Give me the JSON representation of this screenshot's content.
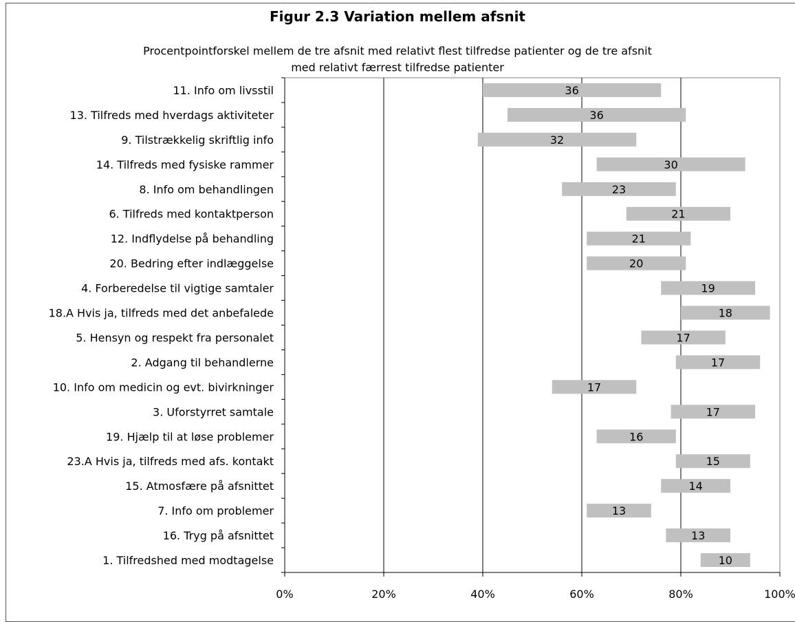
{
  "chart_data": {
    "type": "bar",
    "orientation": "horizontal",
    "style": "floating-range",
    "title": "Figur 2.3 Variation mellem afsnit",
    "subtitle_lines": [
      "Procentpointforskel mellem de tre afsnit med relativt flest tilfredse patienter og de tre afsnit",
      "med relativt færrest tilfredse patienter"
    ],
    "xlim": [
      0,
      100
    ],
    "x_ticks": [
      "0%",
      "20%",
      "40%",
      "60%",
      "80%",
      "100%"
    ],
    "grid": "vertical",
    "bar_color": "#c0c0c0",
    "categories": [
      "11. Info om livsstil",
      "13. Tilfreds med hverdags aktiviteter",
      "9. Tilstrækkelig skriftlig info",
      "14. Tilfreds med fysiske rammer",
      "8. Info om behandlingen",
      "6. Tilfreds med kontaktperson",
      "12. Indflydelse på behandling",
      "20. Bedring efter indlæggelse",
      "4. Forberedelse til vigtige samtaler",
      "18.A Hvis ja, tilfreds med det anbefalede",
      "5. Hensyn og respekt fra personalet",
      "2. Adgang til behandlerne",
      "10. Info om medicin og evt. bivirkninger",
      "3. Uforstyrret samtale",
      "19. Hjælp til at løse problemer",
      "23.A Hvis ja, tilfreds med afs. kontakt",
      "15. Atmosfære på afsnittet",
      "7. Info om problemer",
      "16. Tryg på afsnittet",
      "1. Tilfredshed med modtagelse"
    ],
    "start": [
      40,
      45,
      39,
      63,
      56,
      69,
      61,
      61,
      76,
      80,
      72,
      79,
      54,
      78,
      63,
      79,
      76,
      61,
      77,
      84
    ],
    "end": [
      76,
      81,
      71,
      93,
      79,
      90,
      82,
      81,
      95,
      98,
      89,
      96,
      71,
      95,
      79,
      94,
      90,
      74,
      90,
      94
    ],
    "labels": [
      "36",
      "36",
      "32",
      "30",
      "23",
      "21",
      "21",
      "20",
      "19",
      "18",
      "17",
      "17",
      "17",
      "17",
      "16",
      "15",
      "14",
      "13",
      "13",
      "10"
    ]
  }
}
